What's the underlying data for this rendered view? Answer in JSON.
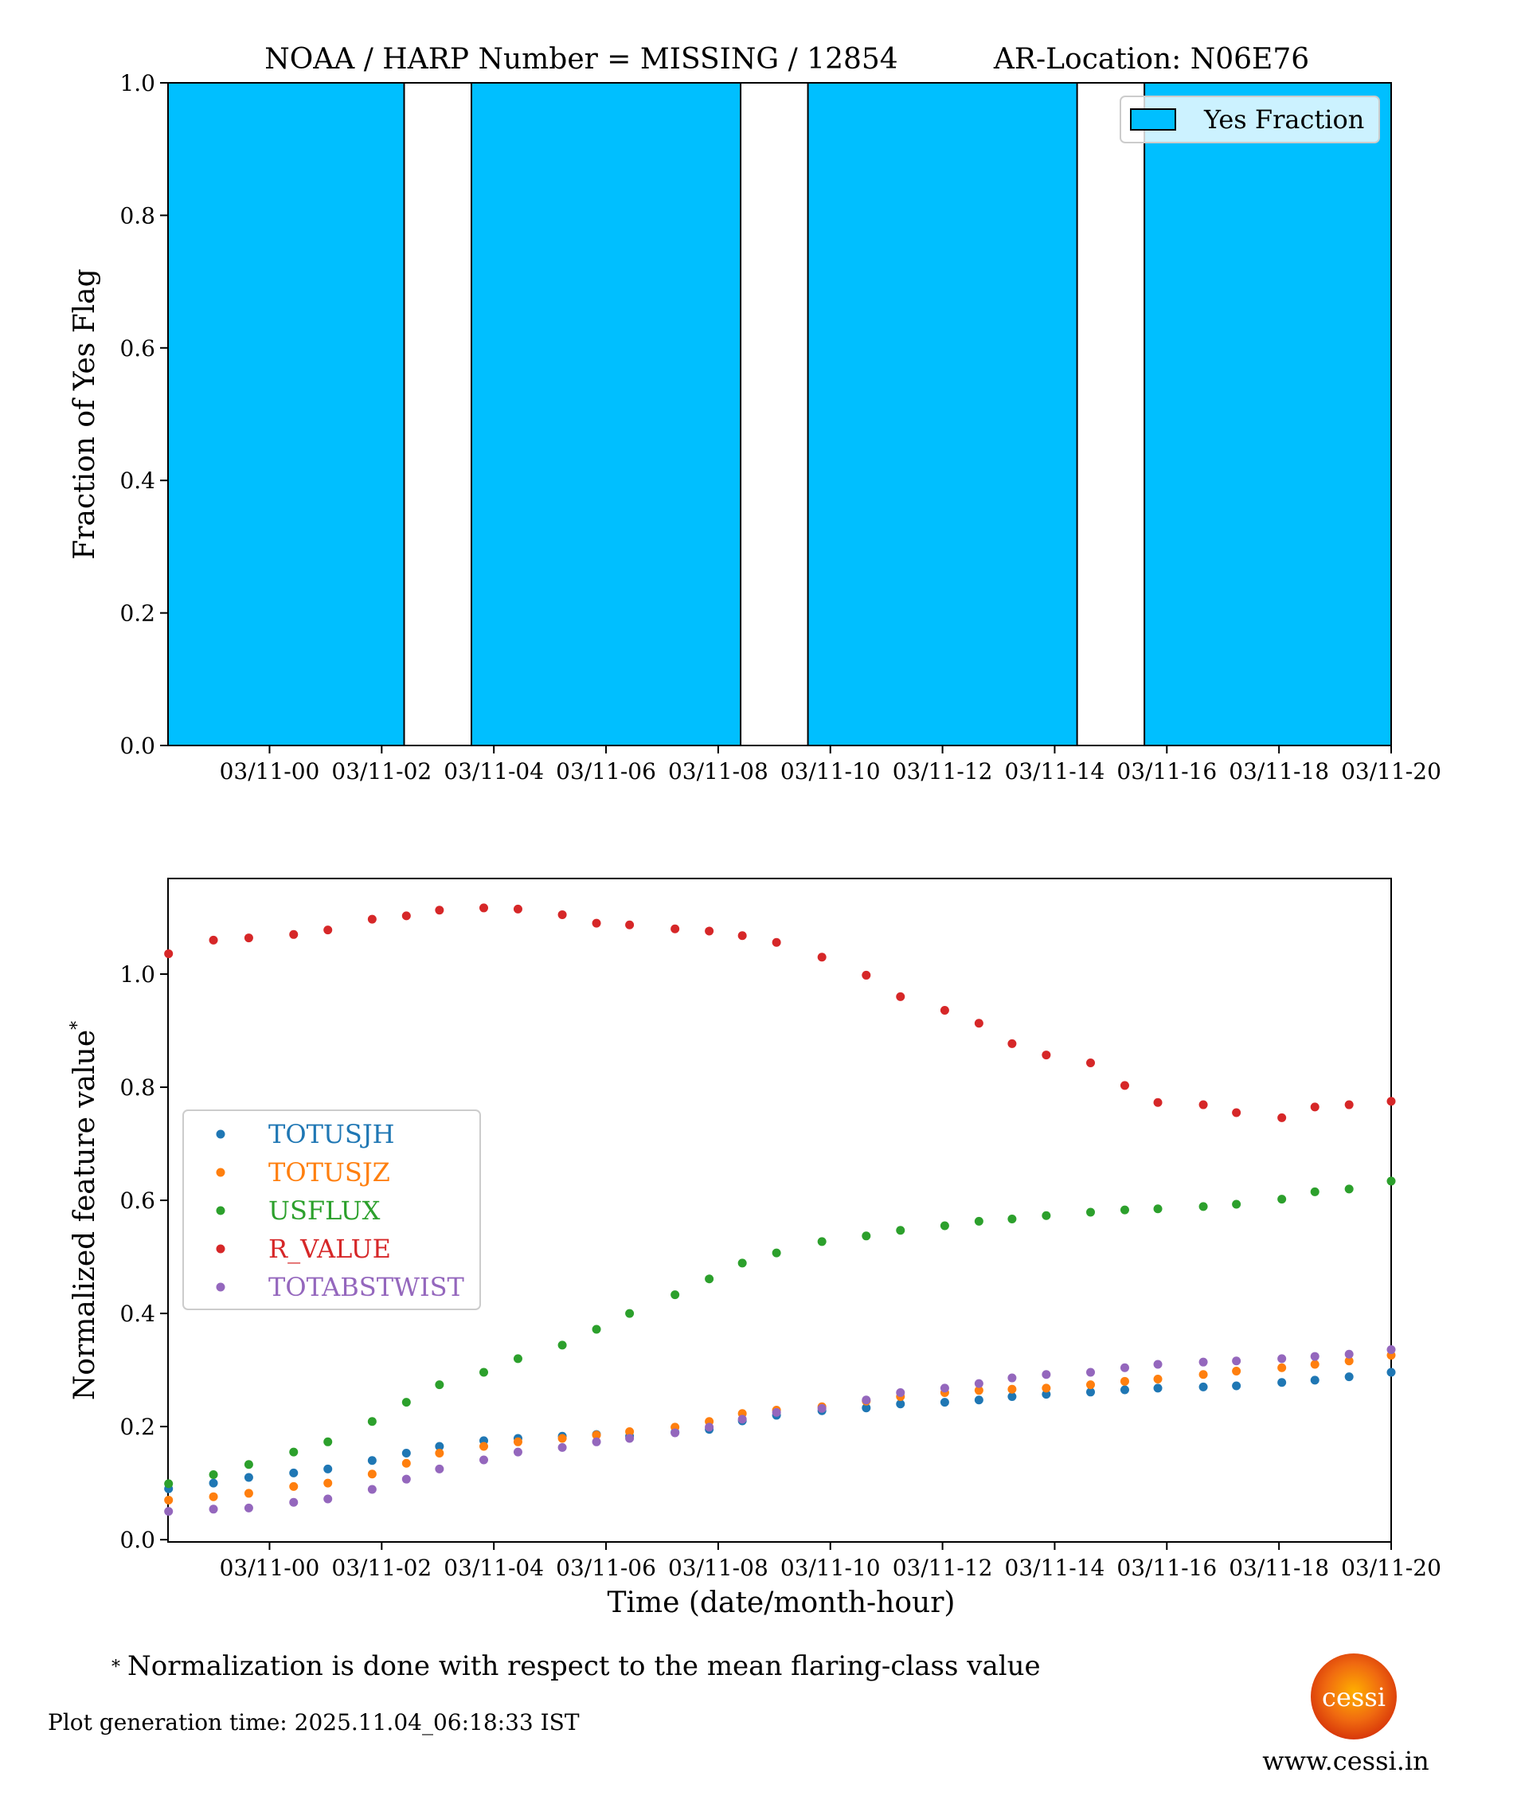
{
  "chart_data": [
    {
      "type": "bar",
      "title_left": "NOAA / HARP Number = MISSING / 12854",
      "title_right": "AR-Location: N06E76",
      "xlabel": "",
      "ylabel": "Fraction of Yes Flag",
      "x_unit": "hours since 03/11-00",
      "xlim": [
        -1.81,
        20.0
      ],
      "ylim": [
        0,
        1.0
      ],
      "bar_width_hours": 4.8,
      "x": [
        0,
        6,
        12,
        18
      ],
      "values": [
        1.0,
        1.0,
        1.0,
        1.0
      ],
      "bar_color": "#00bfff",
      "legend": {
        "label": "Yes Fraction",
        "placement": "upper right"
      },
      "xticks": [
        0,
        2,
        4,
        6,
        8,
        10,
        12,
        14,
        16,
        18,
        20
      ],
      "xtick_labels": [
        "03/11-00",
        "03/11-02",
        "03/11-04",
        "03/11-06",
        "03/11-08",
        "03/11-10",
        "03/11-12",
        "03/11-14",
        "03/11-16",
        "03/11-18",
        "03/11-20"
      ],
      "yticks": [
        0.0,
        0.2,
        0.4,
        0.6,
        0.8,
        1.0
      ],
      "ytick_labels": [
        "0.0",
        "0.2",
        "0.4",
        "0.6",
        "0.8",
        "1.0"
      ]
    },
    {
      "type": "scatter",
      "xlabel": "Time (date/month-hour)",
      "ylabel": "Normalized feature value",
      "ylabel_sup": "*",
      "x_unit": "hours since 03/11-00",
      "xlim": [
        -1.81,
        20.0
      ],
      "ylim": [
        -0.004,
        1.169
      ],
      "x": [
        -1.8,
        -1.0,
        -0.37,
        0.43,
        1.04,
        1.83,
        2.44,
        3.03,
        3.82,
        4.43,
        5.22,
        5.83,
        6.42,
        7.23,
        7.84,
        8.43,
        9.04,
        9.85,
        10.64,
        11.25,
        12.04,
        12.65,
        13.24,
        13.85,
        14.64,
        15.25,
        15.84,
        16.65,
        17.24,
        18.05,
        18.64,
        19.25,
        20.0
      ],
      "series": [
        {
          "name": "TOTUSJH",
          "color": "#1f77b4",
          "values": [
            0.09,
            0.1,
            0.11,
            0.118,
            0.125,
            0.14,
            0.153,
            0.165,
            0.175,
            0.179,
            0.183,
            0.186,
            0.183,
            0.19,
            0.195,
            0.21,
            0.22,
            0.228,
            0.233,
            0.24,
            0.243,
            0.247,
            0.253,
            0.257,
            0.261,
            0.265,
            0.268,
            0.27,
            0.272,
            0.278,
            0.282,
            0.288,
            0.296
          ]
        },
        {
          "name": "TOTUSJZ",
          "color": "#ff7f0e",
          "values": [
            0.07,
            0.076,
            0.082,
            0.094,
            0.1,
            0.116,
            0.135,
            0.153,
            0.165,
            0.173,
            0.179,
            0.185,
            0.191,
            0.199,
            0.209,
            0.223,
            0.229,
            0.235,
            0.245,
            0.253,
            0.26,
            0.264,
            0.266,
            0.268,
            0.274,
            0.28,
            0.284,
            0.292,
            0.298,
            0.304,
            0.31,
            0.316,
            0.326
          ]
        },
        {
          "name": "USFLUX",
          "color": "#2ca02c",
          "values": [
            0.099,
            0.115,
            0.133,
            0.155,
            0.173,
            0.209,
            0.243,
            0.274,
            0.296,
            0.32,
            0.344,
            0.372,
            0.4,
            0.433,
            0.461,
            0.489,
            0.507,
            0.527,
            0.537,
            0.547,
            0.555,
            0.563,
            0.567,
            0.573,
            0.579,
            0.583,
            0.585,
            0.589,
            0.593,
            0.602,
            0.615,
            0.62,
            0.634
          ]
        },
        {
          "name": "R_VALUE",
          "color": "#d62728",
          "values": [
            1.036,
            1.06,
            1.064,
            1.07,
            1.078,
            1.097,
            1.103,
            1.113,
            1.117,
            1.115,
            1.105,
            1.09,
            1.087,
            1.08,
            1.076,
            1.068,
            1.056,
            1.03,
            0.998,
            0.96,
            0.936,
            0.913,
            0.877,
            0.857,
            0.843,
            0.803,
            0.773,
            0.769,
            0.755,
            0.746,
            0.765,
            0.769,
            0.775
          ]
        },
        {
          "name": "TOTABSTWIST",
          "color": "#9467bd",
          "values": [
            0.05,
            0.054,
            0.056,
            0.066,
            0.072,
            0.089,
            0.107,
            0.125,
            0.141,
            0.155,
            0.163,
            0.173,
            0.179,
            0.189,
            0.199,
            0.213,
            0.225,
            0.232,
            0.247,
            0.26,
            0.268,
            0.276,
            0.286,
            0.292,
            0.296,
            0.304,
            0.31,
            0.314,
            0.316,
            0.32,
            0.324,
            0.328,
            0.336
          ]
        }
      ],
      "legend": {
        "placement": "center-left"
      },
      "xticks": [
        0,
        2,
        4,
        6,
        8,
        10,
        12,
        14,
        16,
        18,
        20
      ],
      "xtick_labels": [
        "03/11-00",
        "03/11-02",
        "03/11-04",
        "03/11-06",
        "03/11-08",
        "03/11-10",
        "03/11-12",
        "03/11-14",
        "03/11-16",
        "03/11-18",
        "03/11-20"
      ],
      "yticks": [
        0.0,
        0.2,
        0.4,
        0.6,
        0.8,
        1.0
      ],
      "ytick_labels": [
        "0.0",
        "0.2",
        "0.4",
        "0.6",
        "0.8",
        "1.0"
      ]
    }
  ],
  "footer": {
    "note_mark": "*",
    "note": "Normalization is done with respect to the mean flaring-class value",
    "generation_time": "Plot generation time: 2025.11.04_06:18:33 IST",
    "logo_text": "cessi",
    "website": "www.cessi.in"
  }
}
